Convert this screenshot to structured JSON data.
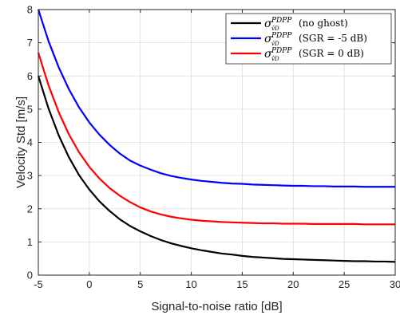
{
  "chart_data": {
    "type": "line",
    "xlabel": "Signal-to-noise ratio [dB]",
    "ylabel": "Velocity Std [m/s]",
    "xlim": [
      -5,
      30
    ],
    "ylim": [
      0,
      8
    ],
    "xticks": [
      -5,
      0,
      5,
      10,
      15,
      20,
      25,
      30
    ],
    "yticks": [
      0,
      1,
      2,
      3,
      4,
      5,
      6,
      7,
      8
    ],
    "grid": true,
    "legend_position": "top-right",
    "x": [
      -5,
      -4,
      -3,
      -2,
      -1,
      0,
      1,
      2,
      3,
      4,
      5,
      6,
      7,
      8,
      9,
      10,
      11,
      12,
      13,
      14,
      15,
      16,
      17,
      18,
      19,
      20,
      21,
      22,
      23,
      24,
      25,
      26,
      27,
      28,
      29,
      30
    ],
    "series": [
      {
        "name": "(no ghost)",
        "symbol": "σ",
        "superscript": "PDPP",
        "subscript": "v̂D",
        "color": "#000000",
        "values": [
          6.0,
          5.02,
          4.21,
          3.55,
          3.01,
          2.58,
          2.22,
          1.93,
          1.68,
          1.48,
          1.32,
          1.18,
          1.06,
          0.96,
          0.88,
          0.81,
          0.75,
          0.7,
          0.65,
          0.62,
          0.58,
          0.55,
          0.53,
          0.51,
          0.49,
          0.48,
          0.47,
          0.46,
          0.45,
          0.44,
          0.43,
          0.42,
          0.42,
          0.41,
          0.41,
          0.4
        ]
      },
      {
        "name": "(SGR = -5 dB)",
        "symbol": "σ",
        "superscript": "PDPP",
        "subscript": "v̂D",
        "color": "#0000ff",
        "values": [
          8.0,
          7.05,
          6.26,
          5.6,
          5.05,
          4.6,
          4.23,
          3.92,
          3.66,
          3.45,
          3.3,
          3.18,
          3.07,
          2.99,
          2.93,
          2.88,
          2.84,
          2.81,
          2.78,
          2.76,
          2.75,
          2.73,
          2.72,
          2.71,
          2.7,
          2.69,
          2.69,
          2.68,
          2.68,
          2.67,
          2.67,
          2.67,
          2.66,
          2.66,
          2.66,
          2.66
        ]
      },
      {
        "name": "(SGR = 0 dB)",
        "symbol": "σ",
        "superscript": "PDPP",
        "subscript": "v̂D",
        "color": "#ff0000",
        "values": [
          6.7,
          5.72,
          4.91,
          4.24,
          3.7,
          3.26,
          2.91,
          2.62,
          2.39,
          2.2,
          2.04,
          1.92,
          1.83,
          1.76,
          1.71,
          1.67,
          1.64,
          1.62,
          1.6,
          1.59,
          1.58,
          1.57,
          1.56,
          1.56,
          1.55,
          1.55,
          1.55,
          1.54,
          1.54,
          1.54,
          1.54,
          1.54,
          1.53,
          1.53,
          1.53,
          1.53
        ]
      }
    ]
  }
}
